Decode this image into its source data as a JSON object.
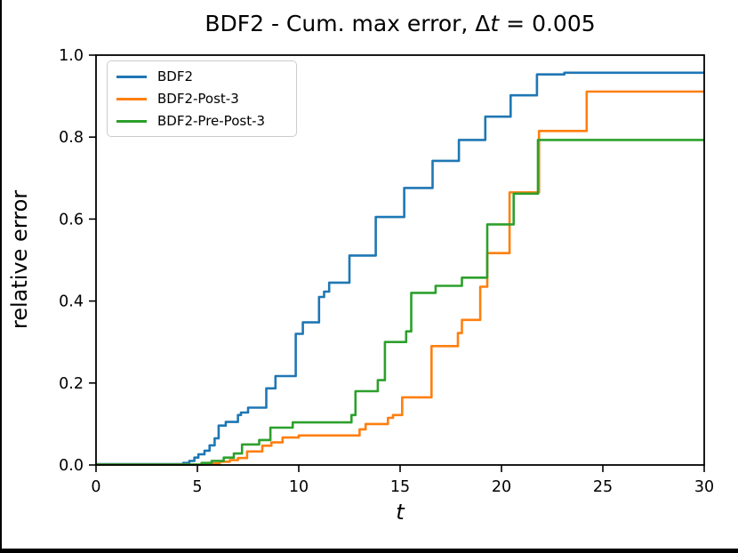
{
  "window": {
    "background": "#ffffff",
    "edge_color": "#000000"
  },
  "chart": {
    "title": {
      "prefix": "BDF2 - Cum. max error, Δ",
      "italic_var": "t",
      "suffix": " = 0.005"
    }
  },
  "chart_data": {
    "type": "line",
    "step_mode": "post",
    "title": "BDF2 - Cum. max error, Δt = 0.005",
    "xlabel": "t",
    "ylabel": "relative error",
    "xlim": [
      0,
      30
    ],
    "ylim": [
      0.0,
      1.0
    ],
    "xtick_values": [
      0,
      5,
      10,
      15,
      20,
      25,
      30
    ],
    "xtick_labels": [
      "0",
      "5",
      "10",
      "15",
      "20",
      "25",
      "30"
    ],
    "ytick_values": [
      0.0,
      0.2,
      0.4,
      0.6,
      0.8,
      1.0
    ],
    "ytick_labels": [
      "0.0",
      "0.2",
      "0.4",
      "0.6",
      "0.8",
      "1.0"
    ],
    "grid": false,
    "legend_position": "upper left",
    "series": [
      {
        "name": "BDF2",
        "color": "#1f77b4",
        "points": [
          [
            0,
            0.002
          ],
          [
            4.3,
            0.005
          ],
          [
            4.6,
            0.01
          ],
          [
            4.85,
            0.018
          ],
          [
            5.05,
            0.026
          ],
          [
            5.35,
            0.035
          ],
          [
            5.6,
            0.048
          ],
          [
            5.85,
            0.065
          ],
          [
            6.05,
            0.096
          ],
          [
            6.4,
            0.105
          ],
          [
            7.0,
            0.122
          ],
          [
            7.15,
            0.128
          ],
          [
            7.5,
            0.14
          ],
          [
            8.4,
            0.187
          ],
          [
            8.85,
            0.217
          ],
          [
            9.85,
            0.32
          ],
          [
            10.2,
            0.348
          ],
          [
            11.0,
            0.41
          ],
          [
            11.25,
            0.423
          ],
          [
            11.5,
            0.445
          ],
          [
            12.5,
            0.511
          ],
          [
            13.8,
            0.605
          ],
          [
            15.2,
            0.676
          ],
          [
            16.6,
            0.742
          ],
          [
            17.9,
            0.793
          ],
          [
            19.2,
            0.85
          ],
          [
            20.45,
            0.902
          ],
          [
            21.75,
            0.953
          ],
          [
            23.1,
            0.957
          ],
          [
            30,
            0.957
          ]
        ]
      },
      {
        "name": "BDF2-Post-3",
        "color": "#ff7f0e",
        "points": [
          [
            0,
            0.001
          ],
          [
            5.5,
            0.004
          ],
          [
            6.1,
            0.008
          ],
          [
            6.6,
            0.012
          ],
          [
            7.0,
            0.017
          ],
          [
            7.45,
            0.033
          ],
          [
            8.2,
            0.047
          ],
          [
            8.65,
            0.055
          ],
          [
            9.2,
            0.067
          ],
          [
            10.0,
            0.072
          ],
          [
            13.0,
            0.087
          ],
          [
            13.3,
            0.1
          ],
          [
            14.4,
            0.115
          ],
          [
            14.65,
            0.122
          ],
          [
            15.1,
            0.165
          ],
          [
            16.55,
            0.29
          ],
          [
            17.85,
            0.322
          ],
          [
            18.05,
            0.354
          ],
          [
            18.95,
            0.435
          ],
          [
            19.3,
            0.517
          ],
          [
            20.4,
            0.665
          ],
          [
            21.85,
            0.815
          ],
          [
            24.2,
            0.911
          ],
          [
            30,
            0.911
          ]
        ]
      },
      {
        "name": "BDF2-Pre-Post-3",
        "color": "#2ca02c",
        "points": [
          [
            0,
            0.001
          ],
          [
            5.2,
            0.005
          ],
          [
            5.7,
            0.01
          ],
          [
            6.3,
            0.018
          ],
          [
            6.8,
            0.028
          ],
          [
            7.2,
            0.05
          ],
          [
            8.05,
            0.061
          ],
          [
            8.6,
            0.091
          ],
          [
            9.7,
            0.104
          ],
          [
            12.6,
            0.122
          ],
          [
            12.8,
            0.18
          ],
          [
            13.9,
            0.207
          ],
          [
            14.25,
            0.3
          ],
          [
            15.3,
            0.326
          ],
          [
            15.55,
            0.42
          ],
          [
            16.75,
            0.437
          ],
          [
            18.05,
            0.457
          ],
          [
            19.3,
            0.587
          ],
          [
            20.6,
            0.662
          ],
          [
            21.8,
            0.793
          ],
          [
            30,
            0.793
          ]
        ]
      }
    ]
  }
}
